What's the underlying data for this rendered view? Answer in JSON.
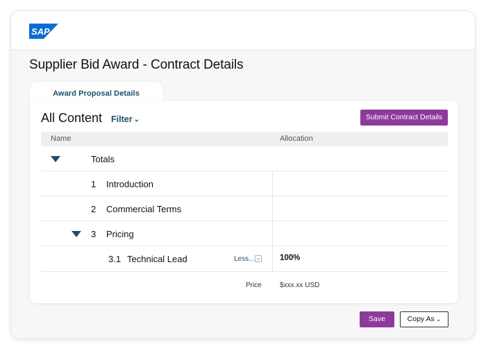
{
  "brand": {
    "logo_text": "SAP",
    "logo_color": "#0a6ed1"
  },
  "page": {
    "title": "Supplier Bid Award - Contract Details"
  },
  "tabs": [
    {
      "label": "Award Proposal Details",
      "active": true
    }
  ],
  "content": {
    "title": "All Content",
    "filter_label": "Filter",
    "submit_label": "Submit Contract Details",
    "columns": {
      "name": "Name",
      "allocation": "Allocation"
    },
    "rows": [
      {
        "label": "Totals",
        "expanded": true
      },
      {
        "num": "1",
        "label": "Introduction"
      },
      {
        "num": "2",
        "label": "Commercial Terms"
      },
      {
        "num": "3",
        "label": "Pricing",
        "expanded": true
      },
      {
        "num": "3.1",
        "label": "Technical Lead",
        "toggle": "Less...",
        "allocation": "100%"
      }
    ],
    "price": {
      "label": "Price",
      "value": "$xxx.xx USD"
    }
  },
  "footer": {
    "save_label": "Save",
    "copy_label": "Copy As"
  },
  "colors": {
    "accent": "#8e3a9c",
    "link": "#1c4e6b"
  }
}
